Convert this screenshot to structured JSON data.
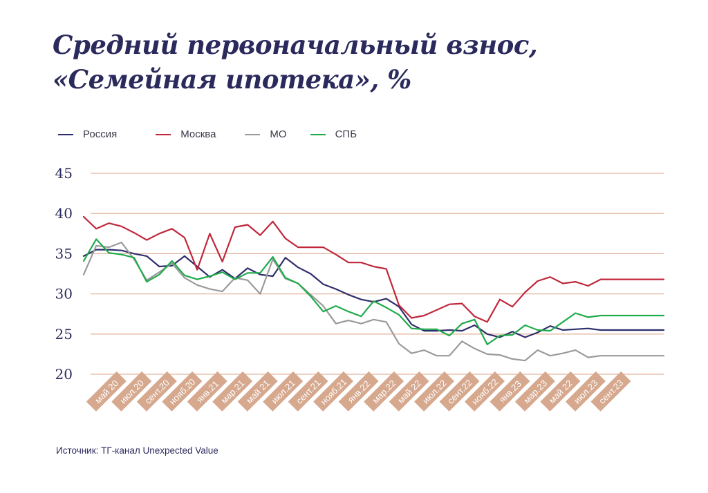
{
  "title_line1": "Средний первоначальный взнос,",
  "title_line2": "«Семейная ипотека», %",
  "source": "Источник: ТГ-канал Unexpected Value",
  "colors": {
    "grid": "#e2b49c",
    "label_bg": "#d6a88e",
    "axis_text": "#2b2a5c"
  },
  "chart_data": {
    "type": "line",
    "title": "Средний первоначальный взнос, «Семейная ипотека», %",
    "ylim": [
      20,
      45
    ],
    "yticks": [
      "20",
      "25",
      "30",
      "35",
      "40",
      "45"
    ],
    "x_count": 47,
    "x_labels": [
      "май 20",
      "июл.20",
      "сент.20",
      "нояб.20",
      "янв.21",
      "мар.21",
      "май 21",
      "июл.21",
      "сент.21",
      "нояб.21",
      "янв.22",
      "мар.22",
      "май 22",
      "июл.22",
      "сент.22",
      "нояб.22",
      "янв.23",
      "мар.23",
      "май 22",
      "июл.23",
      "сент.23"
    ],
    "x_label_index": [
      3,
      5,
      7,
      9,
      11,
      13,
      15,
      17,
      19,
      21,
      23,
      25,
      27,
      29,
      31,
      33,
      35,
      37,
      39,
      41,
      43
    ],
    "series": [
      {
        "name": "Россия",
        "color": "#2e2d6b",
        "values": [
          34.7,
          35.5,
          35.5,
          35.4,
          35.0,
          34.7,
          33.4,
          33.5,
          34.7,
          33.4,
          32.1,
          33.0,
          31.9,
          33.2,
          32.4,
          32.2,
          34.5,
          33.3,
          32.5,
          31.2,
          30.6,
          29.9,
          29.3,
          29.0,
          29.4,
          28.4,
          26.2,
          25.4,
          25.4,
          25.5,
          25.4,
          26.1,
          25.0,
          24.6,
          25.3,
          24.6,
          25.2,
          26.0,
          25.5,
          25.6,
          25.7,
          25.5,
          25.5,
          25.5,
          25.5,
          25.5,
          25.5
        ]
      },
      {
        "name": "Москва",
        "color": "#c0273a",
        "values": [
          39.6,
          38.1,
          38.8,
          38.4,
          37.6,
          36.7,
          37.5,
          38.1,
          37.0,
          33.0,
          37.5,
          34.0,
          38.3,
          38.6,
          37.3,
          39.0,
          36.9,
          35.8,
          35.8,
          35.8,
          34.9,
          33.9,
          33.9,
          33.4,
          33.1,
          28.6,
          27.0,
          27.3,
          28.0,
          28.7,
          28.8,
          27.2,
          26.5,
          29.3,
          28.4,
          30.2,
          31.6,
          32.1,
          31.3,
          31.5,
          31.0,
          31.8,
          31.8,
          31.8,
          31.8,
          31.8,
          31.8
        ]
      },
      {
        "name": "МО",
        "color": "#9a9a9a",
        "values": [
          32.4,
          36.0,
          35.8,
          36.4,
          34.3,
          31.7,
          32.7,
          33.8,
          32.0,
          31.1,
          30.6,
          30.3,
          32.0,
          31.7,
          30.0,
          34.3,
          31.9,
          31.3,
          29.9,
          28.5,
          26.3,
          26.7,
          26.3,
          26.8,
          26.5,
          23.8,
          22.6,
          23.0,
          22.3,
          22.3,
          24.1,
          23.2,
          22.5,
          22.4,
          21.9,
          21.7,
          23.0,
          22.3,
          22.6,
          23.0,
          22.1,
          22.3,
          22.3,
          22.3,
          22.3,
          22.3,
          22.3
        ]
      },
      {
        "name": "СПБ",
        "color": "#1faa4b",
        "values": [
          34.1,
          36.8,
          35.1,
          34.9,
          34.5,
          31.5,
          32.4,
          34.1,
          32.3,
          31.8,
          32.2,
          32.7,
          31.8,
          32.6,
          32.6,
          34.6,
          32.0,
          31.3,
          29.7,
          27.8,
          28.5,
          27.8,
          27.2,
          29.1,
          28.3,
          27.4,
          25.7,
          25.6,
          25.6,
          24.8,
          26.3,
          26.8,
          23.7,
          24.8,
          24.9,
          26.1,
          25.5,
          25.4,
          26.5,
          27.6,
          27.1,
          27.3,
          27.3,
          27.3,
          27.3,
          27.3,
          27.3
        ]
      }
    ]
  }
}
